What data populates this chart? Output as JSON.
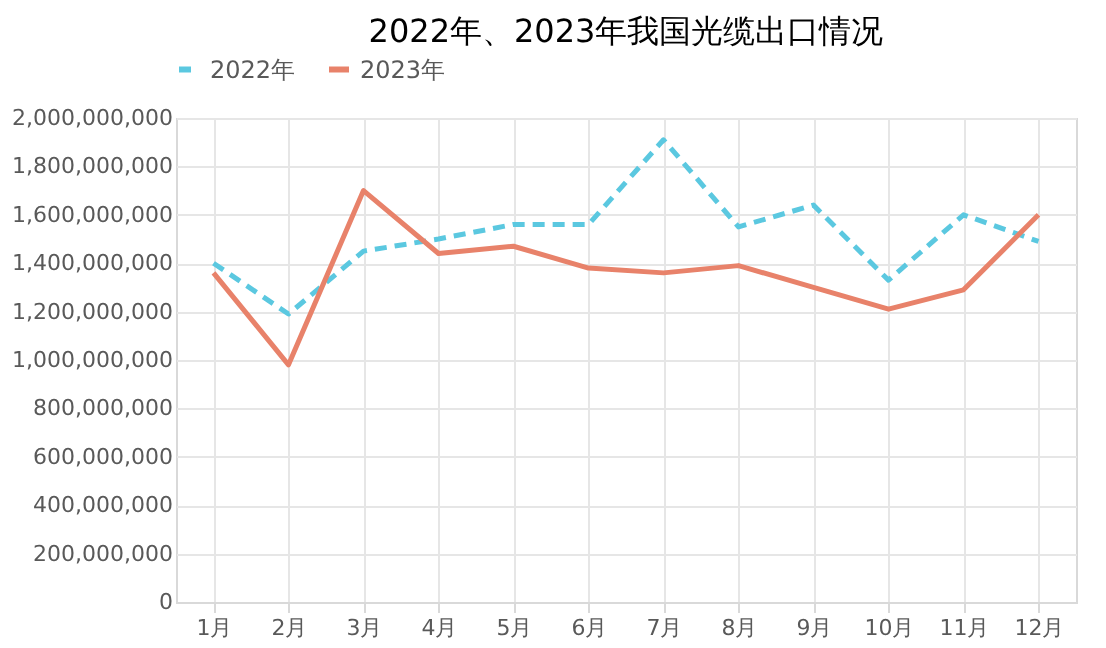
{
  "chart_data": {
    "type": "line",
    "title": "2022年、2023年我国光缆出口情况",
    "categories": [
      "1月",
      "2月",
      "3月",
      "4月",
      "5月",
      "6月",
      "7月",
      "8月",
      "9月",
      "10月",
      "11月",
      "12月"
    ],
    "series": [
      {
        "name": "2022年",
        "color": "#5bc8e0",
        "line_style": "dashed",
        "values": [
          1400000000,
          1190000000,
          1450000000,
          1500000000,
          1560000000,
          1560000000,
          1910000000,
          1550000000,
          1640000000,
          1330000000,
          1600000000,
          1490000000
        ]
      },
      {
        "name": "2023年",
        "color": "#e8826a",
        "line_style": "solid",
        "values": [
          1360000000,
          980000000,
          1700000000,
          1440000000,
          1470000000,
          1380000000,
          1360000000,
          1390000000,
          1300000000,
          1210000000,
          1290000000,
          1600000000
        ]
      }
    ],
    "ylim": [
      0,
      2000000000
    ],
    "yticks": [
      0,
      {
        "value": 200000000,
        "label": "200,000,000"
      },
      {
        "value": 400000000,
        "label": "400,000,000"
      },
      {
        "value": 600000000,
        "label": "600,000,000"
      },
      {
        "value": 800000000,
        "label": "800,000,000"
      },
      {
        "value": 1000000000,
        "label": "1,000,000,000"
      },
      {
        "value": 1200000000,
        "label": "1,200,000,000"
      },
      {
        "value": 1400000000,
        "label": "1,400,000,000"
      },
      {
        "value": 1600000000,
        "label": "1,600,000,000"
      },
      {
        "value": 1800000000,
        "label": "1,800,000,000"
      },
      {
        "value": 2000000000,
        "label": "2,000,000,000"
      }
    ],
    "grid": true,
    "legend": "top",
    "marker": "none"
  }
}
